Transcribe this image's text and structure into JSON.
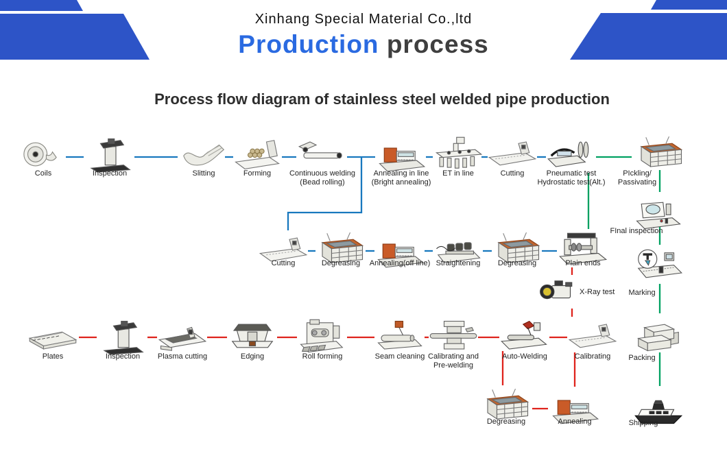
{
  "header": {
    "company": "Xinhang Special Material Co.,ltd",
    "title_primary": "Production",
    "title_secondary": "process"
  },
  "subtitle": "Process flow diagram of stainless steel welded pipe production",
  "colors": {
    "brand_blue": "#2d54c7",
    "title_blue": "#2a6ae1",
    "title_dark": "#3f3f3f",
    "line_blue": "#1878be",
    "line_red": "#df231c",
    "line_green": "#00a161"
  },
  "stations": {
    "top": [
      {
        "id": "coils",
        "icon": "coil-icon",
        "label": [
          "Coils"
        ]
      },
      {
        "id": "inspection",
        "icon": "inspection-machine-icon",
        "label": [
          "Inspection"
        ]
      },
      {
        "id": "slitting",
        "icon": "sheet-icon",
        "label": [
          "Slitting"
        ]
      },
      {
        "id": "forming",
        "icon": "forming-mill-icon",
        "label": [
          "Forming"
        ]
      },
      {
        "id": "continuous-welding",
        "icon": "tube-icon",
        "label": [
          "Continuous welding",
          "(Bead rolling)"
        ]
      },
      {
        "id": "annealing-in-line",
        "icon": "furnace-icon",
        "label": [
          "Annealing in line",
          "(Bright annealing)"
        ]
      },
      {
        "id": "et-in-line",
        "icon": "rack-icon",
        "label": [
          "ET in line"
        ]
      },
      {
        "id": "cutting-in-line",
        "icon": "bed-icon",
        "label": [
          "Cutting"
        ]
      },
      {
        "id": "pneumatic-test",
        "icon": "tester-icon",
        "label": [
          "Pneumatic test",
          "Hydrostatic test(Alt.)"
        ]
      },
      {
        "id": "pickling-passivating",
        "icon": "tank-icon",
        "label": [
          "PIckling/",
          "Passivating"
        ]
      }
    ],
    "middle": [
      {
        "id": "cutting",
        "icon": "bed-icon",
        "label": [
          "Cutting"
        ]
      },
      {
        "id": "degreasing-1",
        "icon": "tank-icon",
        "label": [
          "Degreasing"
        ]
      },
      {
        "id": "annealing-off-line",
        "icon": "furnace-icon",
        "label": [
          "Annealing(off line)"
        ]
      },
      {
        "id": "straightening",
        "icon": "straightener-icon",
        "label": [
          "Straightening"
        ]
      },
      {
        "id": "degreasing-2",
        "icon": "tank-icon",
        "label": [
          "Degreasing"
        ]
      },
      {
        "id": "plain-ends",
        "icon": "plain-ends-icon",
        "label": [
          "Plain ends"
        ]
      }
    ],
    "bottom": [
      {
        "id": "plates",
        "icon": "plate-icon",
        "label": [
          "Plates"
        ]
      },
      {
        "id": "inspection-2",
        "icon": "inspection-machine-icon",
        "label": [
          "Inspection"
        ]
      },
      {
        "id": "plasma-cutting",
        "icon": "plasma-table-icon",
        "label": [
          "Plasma cutting"
        ]
      },
      {
        "id": "edging",
        "icon": "edging-press-icon",
        "label": [
          "Edging"
        ]
      },
      {
        "id": "roll-forming",
        "icon": "roll-mill-icon",
        "label": [
          "Roll forming"
        ]
      },
      {
        "id": "seam-cleaning",
        "icon": "cleaner-icon",
        "label": [
          "Seam cleaning"
        ]
      },
      {
        "id": "calibrating-pre-welding",
        "icon": "frame-icon",
        "label": [
          "Calibrating and",
          "Pre-welding"
        ]
      },
      {
        "id": "auto-welding",
        "icon": "welder-icon",
        "label": [
          "Auto-Welding"
        ]
      },
      {
        "id": "calibrating",
        "icon": "bed-icon",
        "label": [
          "Calibrating"
        ]
      }
    ],
    "sub": [
      {
        "id": "degreasing-3",
        "icon": "tank-icon",
        "label": [
          "Degreasing"
        ]
      },
      {
        "id": "annealing-2",
        "icon": "furnace-icon",
        "label": [
          "Annealing"
        ]
      }
    ],
    "right": [
      {
        "id": "final-inspection",
        "icon": "analyzer-icon",
        "label": [
          "FInal inspection"
        ]
      },
      {
        "id": "marking",
        "icon": "marking-icon",
        "label": [
          "Marking"
        ]
      },
      {
        "id": "packing",
        "icon": "boxes-icon",
        "label": [
          "Packing"
        ]
      },
      {
        "id": "shipping",
        "icon": "ship-icon",
        "label": [
          "Shipping"
        ]
      }
    ],
    "xray": {
      "id": "x-ray-test",
      "icon": "camera-icon",
      "label": [
        "X-Ray test"
      ]
    }
  }
}
